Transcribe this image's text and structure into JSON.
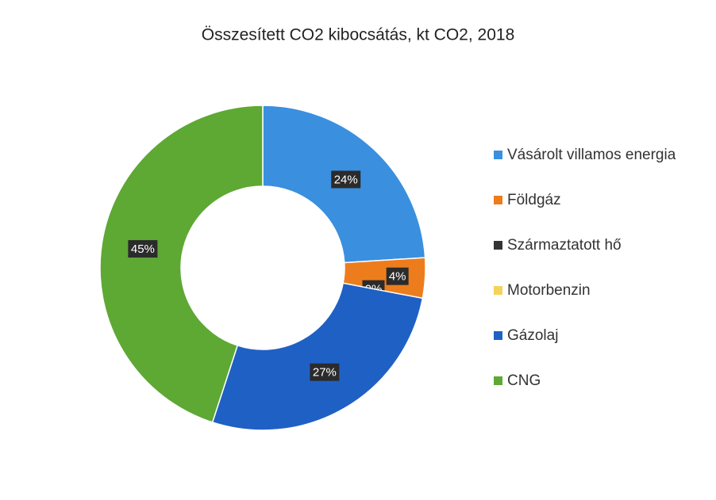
{
  "chart_data": {
    "type": "pie",
    "title": "Összesített CO2 kibocsátás, kt CO2, 2018",
    "categories": [
      "Vásárolt villamos energia",
      "Földgáz",
      "Származtatott hő",
      "Motorbenzin",
      "Gázolaj",
      "CNG"
    ],
    "values": [
      24,
      4,
      0,
      0,
      27,
      45
    ],
    "value_labels": [
      "24%",
      "4%",
      "0%",
      "0%",
      "27%",
      "45%"
    ],
    "colors": [
      "#3a8fdf",
      "#ed7d1c",
      "#333333",
      "#f3d35a",
      "#1f60c4",
      "#5ea834"
    ],
    "donut": true,
    "legend": "right"
  }
}
